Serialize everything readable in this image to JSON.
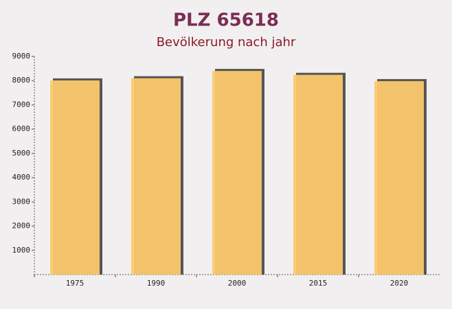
{
  "chart_data": {
    "type": "bar",
    "title": "PLZ 65618",
    "subtitle": "Bevölkerung nach jahr",
    "categories": [
      "1975",
      "1990",
      "2000",
      "2015",
      "2020"
    ],
    "values": [
      8010,
      8100,
      8400,
      8240,
      7980
    ],
    "color": "#fcc96e",
    "ylim": [
      0,
      9000
    ],
    "yticks": [
      1000,
      2000,
      3000,
      4000,
      5000,
      6000,
      7000,
      8000,
      9000
    ]
  }
}
